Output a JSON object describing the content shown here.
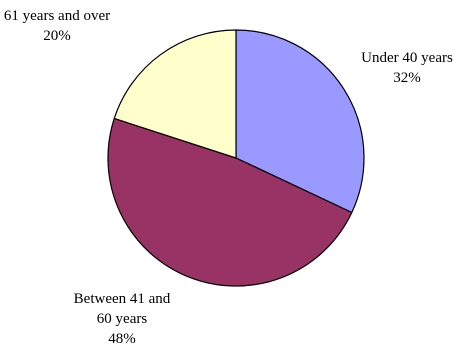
{
  "chart_data": {
    "type": "pie",
    "title": "",
    "start_angle_deg": 0,
    "direction": "clockwise",
    "slices": [
      {
        "label_lines": [
          "Under 40 years",
          "32%"
        ],
        "value": 32,
        "color": "#9999FF"
      },
      {
        "label_lines": [
          "Between 41 and",
          "60 years",
          "48%"
        ],
        "value": 48,
        "color": "#993366"
      },
      {
        "label_lines": [
          "61 years and over",
          "20%"
        ],
        "value": 20,
        "color": "#FFFFCC"
      }
    ],
    "outline_color": "#000000",
    "legend": "none"
  }
}
